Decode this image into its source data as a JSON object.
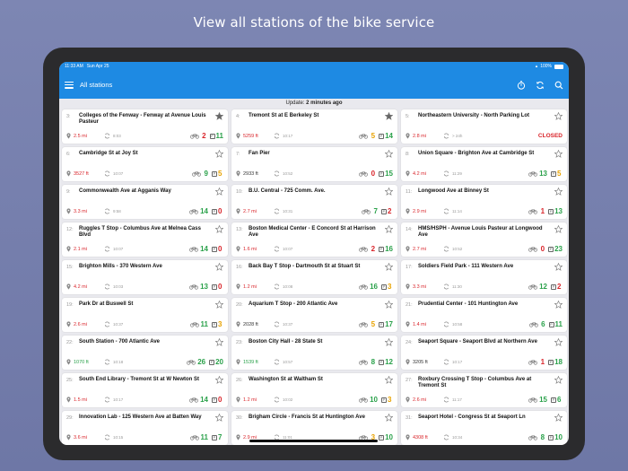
{
  "headline": "View all stations of the bike service",
  "status_bar": {
    "time": "11:33 AM",
    "date": "Sun Apr 25",
    "battery": "100%"
  },
  "nav": {
    "title": "All stations"
  },
  "update": {
    "prefix": "Update:",
    "value": "2 minutes ago"
  },
  "colors": {
    "accent": "#1e8ae3",
    "red": "#d9242a",
    "green": "#2aa14a",
    "orange": "#e8a200"
  },
  "stations": [
    {
      "num": "3:",
      "name": "Colleges of the Fenway - Fenway at Avenue Louis Pasteur",
      "dist": "2.5 mi",
      "distColor": "red",
      "time": "8:03",
      "bikes": "2",
      "bikesColor": "red",
      "docks": "11",
      "docksColor": "green",
      "starred": true,
      "closed": ""
    },
    {
      "num": "4:",
      "name": "Tremont St at E Berkeley St",
      "dist": "5259 ft",
      "distColor": "red",
      "time": "10:17",
      "bikes": "5",
      "bikesColor": "orange",
      "docks": "14",
      "docksColor": "green",
      "starred": true,
      "closed": ""
    },
    {
      "num": "5:",
      "name": "Northeastern University - North Parking Lot",
      "dist": "2.8 mi",
      "distColor": "red",
      "time": "> 24h",
      "bikes": "",
      "bikesColor": "",
      "docks": "",
      "docksColor": "",
      "starred": false,
      "closed": "CLOSED"
    },
    {
      "num": "6:",
      "name": "Cambridge St at Joy St",
      "dist": "3527 ft",
      "distColor": "red",
      "time": "10:07",
      "bikes": "9",
      "bikesColor": "green",
      "docks": "5",
      "docksColor": "orange",
      "starred": false,
      "closed": ""
    },
    {
      "num": "7:",
      "name": "Fan Pier",
      "dist": "2933 ft",
      "distColor": "dark",
      "time": "10:52",
      "bikes": "0",
      "bikesColor": "red",
      "docks": "15",
      "docksColor": "green",
      "starred": false,
      "closed": ""
    },
    {
      "num": "8:",
      "name": "Union Square - Brighton Ave at Cambridge St",
      "dist": "4.2 mi",
      "distColor": "red",
      "time": "11:29",
      "bikes": "13",
      "bikesColor": "green",
      "docks": "5",
      "docksColor": "orange",
      "starred": false,
      "closed": ""
    },
    {
      "num": "9:",
      "name": "Commonwealth Ave at Agganis Way",
      "dist": "3.3 mi",
      "distColor": "red",
      "time": "9:58",
      "bikes": "14",
      "bikesColor": "green",
      "docks": "0",
      "docksColor": "red",
      "starred": false,
      "closed": ""
    },
    {
      "num": "10:",
      "name": "B.U. Central - 725 Comm. Ave.",
      "dist": "2.7 mi",
      "distColor": "red",
      "time": "10:31",
      "bikes": "7",
      "bikesColor": "green",
      "docks": "2",
      "docksColor": "red",
      "starred": false,
      "closed": ""
    },
    {
      "num": "11:",
      "name": "Longwood Ave at Binney St",
      "dist": "2.9 mi",
      "distColor": "red",
      "time": "11:14",
      "bikes": "1",
      "bikesColor": "red",
      "docks": "13",
      "docksColor": "green",
      "starred": false,
      "closed": ""
    },
    {
      "num": "12:",
      "name": "Ruggles T Stop - Columbus Ave at Melnea Cass Blvd",
      "dist": "2.1 mi",
      "distColor": "red",
      "time": "10:07",
      "bikes": "14",
      "bikesColor": "green",
      "docks": "0",
      "docksColor": "red",
      "starred": false,
      "closed": ""
    },
    {
      "num": "13:",
      "name": "Boston Medical Center - E Concord St at Harrison Ave",
      "dist": "1.6 mi",
      "distColor": "red",
      "time": "10:07",
      "bikes": "2",
      "bikesColor": "red",
      "docks": "16",
      "docksColor": "green",
      "starred": false,
      "closed": ""
    },
    {
      "num": "14:",
      "name": "HMS/HSPH - Avenue Louis Pasteur at Longwood Ave",
      "dist": "2.7 mi",
      "distColor": "red",
      "time": "10:52",
      "bikes": "0",
      "bikesColor": "red",
      "docks": "23",
      "docksColor": "green",
      "starred": false,
      "closed": ""
    },
    {
      "num": "15:",
      "name": "Brighton Mills - 370 Western Ave",
      "dist": "4.2 mi",
      "distColor": "red",
      "time": "10:03",
      "bikes": "13",
      "bikesColor": "green",
      "docks": "0",
      "docksColor": "red",
      "starred": false,
      "closed": ""
    },
    {
      "num": "16:",
      "name": "Back Bay T Stop - Dartmouth St at Stuart St",
      "dist": "1.2 mi",
      "distColor": "red",
      "time": "10:08",
      "bikes": "16",
      "bikesColor": "green",
      "docks": "3",
      "docksColor": "orange",
      "starred": false,
      "closed": ""
    },
    {
      "num": "17:",
      "name": "Soldiers Field Park - 111 Western Ave",
      "dist": "3.3 mi",
      "distColor": "red",
      "time": "11:30",
      "bikes": "12",
      "bikesColor": "green",
      "docks": "2",
      "docksColor": "red",
      "starred": false,
      "closed": ""
    },
    {
      "num": "19:",
      "name": "Park Dr at Buswell St",
      "dist": "2.6 mi",
      "distColor": "red",
      "time": "10:37",
      "bikes": "11",
      "bikesColor": "green",
      "docks": "3",
      "docksColor": "orange",
      "starred": false,
      "closed": ""
    },
    {
      "num": "20:",
      "name": "Aquarium T Stop - 200 Atlantic Ave",
      "dist": "2028 ft",
      "distColor": "dark",
      "time": "10:37",
      "bikes": "5",
      "bikesColor": "orange",
      "docks": "17",
      "docksColor": "green",
      "starred": false,
      "closed": ""
    },
    {
      "num": "21:",
      "name": "Prudential Center - 101 Huntington Ave",
      "dist": "1.4 mi",
      "distColor": "red",
      "time": "10:58",
      "bikes": "6",
      "bikesColor": "green",
      "docks": "11",
      "docksColor": "green",
      "starred": false,
      "closed": ""
    },
    {
      "num": "22:",
      "name": "South Station - 700 Atlantic Ave",
      "dist": "1070 ft",
      "distColor": "green",
      "time": "10:18",
      "bikes": "26",
      "bikesColor": "green",
      "docks": "20",
      "docksColor": "green",
      "starred": false,
      "closed": ""
    },
    {
      "num": "23:",
      "name": "Boston City Hall - 28 State St",
      "dist": "1539 ft",
      "distColor": "green",
      "time": "10:57",
      "bikes": "8",
      "bikesColor": "green",
      "docks": "12",
      "docksColor": "green",
      "starred": false,
      "closed": ""
    },
    {
      "num": "24:",
      "name": "Seaport Square - Seaport Blvd at Northern Ave",
      "dist": "3205 ft",
      "distColor": "dark",
      "time": "10:17",
      "bikes": "1",
      "bikesColor": "red",
      "docks": "18",
      "docksColor": "green",
      "starred": false,
      "closed": ""
    },
    {
      "num": "25:",
      "name": "South End Library - Tremont St at W Newton St",
      "dist": "1.5 mi",
      "distColor": "red",
      "time": "10:17",
      "bikes": "14",
      "bikesColor": "green",
      "docks": "0",
      "docksColor": "red",
      "starred": false,
      "closed": ""
    },
    {
      "num": "26:",
      "name": "Washington St at Waltham St",
      "dist": "1.2 mi",
      "distColor": "red",
      "time": "10:02",
      "bikes": "10",
      "bikesColor": "green",
      "docks": "3",
      "docksColor": "orange",
      "starred": false,
      "closed": ""
    },
    {
      "num": "27:",
      "name": "Roxbury Crossing T Stop - Columbus Ave at Tremont St",
      "dist": "2.6 mi",
      "distColor": "red",
      "time": "11:17",
      "bikes": "15",
      "bikesColor": "green",
      "docks": "6",
      "docksColor": "green",
      "starred": false,
      "closed": ""
    },
    {
      "num": "29:",
      "name": "Innovation Lab - 125 Western Ave at Batten Way",
      "dist": "3.6 mi",
      "distColor": "red",
      "time": "10:15",
      "bikes": "11",
      "bikesColor": "green",
      "docks": "7",
      "docksColor": "green",
      "starred": false,
      "closed": ""
    },
    {
      "num": "30:",
      "name": "Brigham Circle - Francis St at Huntington Ave",
      "dist": "2.9 mi",
      "distColor": "red",
      "time": "11:01",
      "bikes": "3",
      "bikesColor": "orange",
      "docks": "10",
      "docksColor": "green",
      "starred": false,
      "closed": ""
    },
    {
      "num": "31:",
      "name": "Seaport Hotel - Congress St at Seaport Ln",
      "dist": "4308 ft",
      "distColor": "red",
      "time": "10:34",
      "bikes": "8",
      "bikesColor": "green",
      "docks": "10",
      "docksColor": "green",
      "starred": false,
      "closed": ""
    }
  ]
}
